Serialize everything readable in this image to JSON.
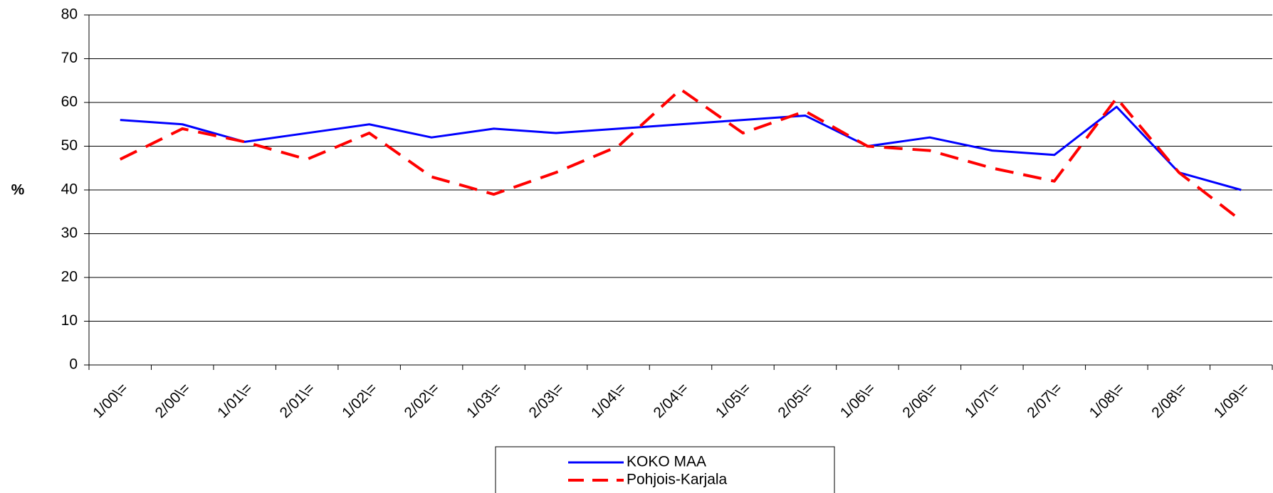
{
  "chart_data": {
    "type": "line",
    "y_label": "%",
    "categories": [
      "1/00\\=",
      "2/00\\=",
      "1/01\\=",
      "2/01\\=",
      "1/02\\=",
      "2/02\\=",
      "1/03\\=",
      "2/03\\=",
      "1/04\\=",
      "2/04\\=",
      "1/05\\=",
      "2/05\\=",
      "1/06\\=",
      "2/06\\=",
      "1/07\\=",
      "2/07\\=",
      "1/08\\=",
      "2/08\\=",
      "1/09\\="
    ],
    "series": [
      {
        "name": "KOKO MAA",
        "color": "#0000ff",
        "line_style": "solid",
        "values": [
          56,
          55,
          51,
          53,
          55,
          52,
          54,
          53,
          54,
          55,
          56,
          57,
          50,
          52,
          49,
          48,
          59,
          44,
          40
        ]
      },
      {
        "name": "Pohjois-Karjala",
        "color": "#ff0000",
        "line_style": "dashed",
        "values": [
          47,
          54,
          51,
          47,
          53,
          43,
          39,
          44,
          50,
          63,
          53,
          58,
          50,
          49,
          45,
          42,
          61,
          44,
          33
        ]
      }
    ],
    "ylim": [
      0,
      80
    ],
    "yticks": [
      0,
      10,
      20,
      30,
      40,
      50,
      60,
      70,
      80
    ],
    "grid": true
  }
}
